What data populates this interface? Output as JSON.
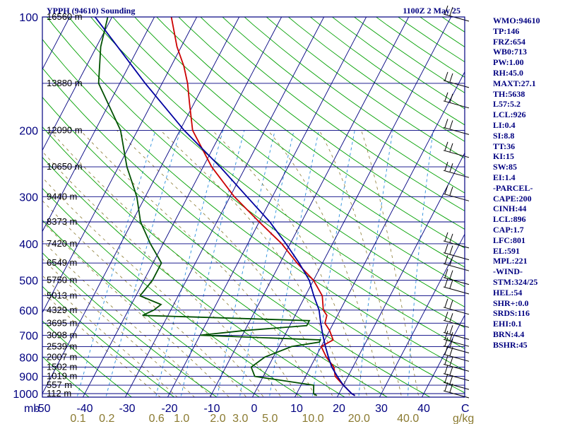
{
  "chart_data": {
    "type": "line",
    "title": "YPPH (94610) Sounding",
    "time": "1100Z  2 May 25",
    "x_unit": "C",
    "mixing_ratio_unit": "g/kg",
    "pressure_axis_label": "mb",
    "xlim": [
      -50,
      50
    ],
    "ylim": [
      1000,
      100
    ],
    "y_scale": "log",
    "pressure_levels": [
      100,
      200,
      300,
      400,
      500,
      600,
      700,
      800,
      900,
      1000
    ],
    "temperature_ticks": [
      -50,
      -40,
      -30,
      -20,
      -10,
      0,
      10,
      20,
      30,
      40
    ],
    "temperature_tick_labels": [
      "-50",
      "-40",
      "-30",
      "-20",
      "-10",
      "0",
      "10",
      "20",
      "30",
      "40"
    ],
    "mixing_ratio_labels": [
      "0.1",
      "0.2",
      "0.6",
      "1.0",
      "2.0",
      "3.0",
      "5.0",
      "10.0",
      "20.0",
      "40.0"
    ],
    "height_labels": [
      {
        "p": 100,
        "label": "16560 m"
      },
      {
        "p": 150,
        "label": "13880 m"
      },
      {
        "p": 200,
        "label": "12090 m"
      },
      {
        "p": 250,
        "label": "10650 m"
      },
      {
        "p": 300,
        "label": "9440 m"
      },
      {
        "p": 350,
        "label": "8373 m"
      },
      {
        "p": 400,
        "label": "7420 m"
      },
      {
        "p": 450,
        "label": "6549 m"
      },
      {
        "p": 500,
        "label": "5750 m"
      },
      {
        "p": 550,
        "label": "5013 m"
      },
      {
        "p": 600,
        "label": "4329 m"
      },
      {
        "p": 650,
        "label": "3695 m"
      },
      {
        "p": 700,
        "label": "3098 m"
      },
      {
        "p": 750,
        "label": "2539 m"
      },
      {
        "p": 800,
        "label": "2007 m"
      },
      {
        "p": 850,
        "label": "1502 m"
      },
      {
        "p": 900,
        "label": "1019 m"
      },
      {
        "p": 950,
        "label": "557 m"
      },
      {
        "p": 1000,
        "label": "112 m"
      }
    ],
    "series": [
      {
        "name": "temperature",
        "color": "#cc0000",
        "points": [
          [
            1012,
            24
          ],
          [
            1000,
            23
          ],
          [
            950,
            20
          ],
          [
            900,
            17
          ],
          [
            850,
            15.5
          ],
          [
            800,
            12.5
          ],
          [
            750,
            10
          ],
          [
            720,
            12
          ],
          [
            700,
            11
          ],
          [
            680,
            10
          ],
          [
            650,
            8
          ],
          [
            620,
            7.5
          ],
          [
            600,
            6
          ],
          [
            550,
            4
          ],
          [
            500,
            0
          ],
          [
            450,
            -6
          ],
          [
            400,
            -12
          ],
          [
            350,
            -20
          ],
          [
            300,
            -29
          ],
          [
            250,
            -38
          ],
          [
            200,
            -47
          ],
          [
            170,
            -51
          ],
          [
            150,
            -54
          ],
          [
            135,
            -57
          ],
          [
            120,
            -61
          ],
          [
            100,
            -66
          ]
        ]
      },
      {
        "name": "dewpoint",
        "color": "#005000",
        "points": [
          [
            1012,
            15
          ],
          [
            1000,
            14
          ],
          [
            950,
            13
          ],
          [
            900,
            -2
          ],
          [
            850,
            -4
          ],
          [
            800,
            -2
          ],
          [
            750,
            3
          ],
          [
            730,
            9
          ],
          [
            720,
            9
          ],
          [
            700,
            -20
          ],
          [
            680,
            -10
          ],
          [
            660,
            4
          ],
          [
            640,
            4
          ],
          [
            620,
            -36
          ],
          [
            600,
            -34
          ],
          [
            580,
            -33
          ],
          [
            550,
            -39
          ],
          [
            500,
            -38
          ],
          [
            450,
            -38
          ],
          [
            400,
            -43
          ],
          [
            350,
            -48
          ],
          [
            300,
            -52
          ],
          [
            250,
            -58
          ],
          [
            200,
            -64
          ],
          [
            150,
            -75
          ],
          [
            120,
            -79
          ],
          [
            100,
            -81
          ]
        ]
      },
      {
        "name": "parcel",
        "color": "#0000a0",
        "points": [
          [
            1012,
            24
          ],
          [
            1000,
            23
          ],
          [
            950,
            20
          ],
          [
            900,
            17.5
          ],
          [
            850,
            15
          ],
          [
            800,
            13
          ],
          [
            750,
            11
          ],
          [
            700,
            9
          ],
          [
            650,
            7
          ],
          [
            600,
            5
          ],
          [
            550,
            2
          ],
          [
            500,
            -1
          ],
          [
            450,
            -5.5
          ],
          [
            400,
            -11
          ],
          [
            350,
            -17.5
          ],
          [
            300,
            -26
          ],
          [
            250,
            -36
          ],
          [
            200,
            -49
          ],
          [
            150,
            -64
          ],
          [
            120,
            -75
          ],
          [
            100,
            -84
          ]
        ]
      }
    ],
    "wind_levels": [
      100,
      150,
      170,
      200,
      230,
      260,
      300,
      400,
      430,
      460,
      500,
      530,
      600,
      650,
      700,
      730,
      760,
      800,
      850,
      900,
      950,
      1000
    ],
    "indices": [
      "WMO:94610",
      "TP:146",
      "FRZ:654",
      "WB0:713",
      "PW:1.00",
      "RH:45.0",
      "MAXT:27.1",
      "TH:5638",
      "L57:5.2",
      "LCL:926",
      "LI:0.4",
      "SI:8.8",
      "TT:36",
      "KI:15",
      "SW:85",
      "EI:1.4",
      "-PARCEL-",
      "CAPE:200",
      "CINH:44",
      "LCL:896",
      "CAP:1.7",
      "LFC:801",
      "EL:591",
      "MPL:221",
      "-WIND-",
      "STM:324/25",
      "HEL:54",
      "SHR+:0.0",
      "SRDS:116",
      "EHI:0.1",
      "BRN:4.4",
      "BSHR:45"
    ],
    "colors": {
      "frame": "#000080",
      "isotherm": "#000080",
      "dry_adiabat": "#00a000",
      "moist_adiabat": "#8a7a30",
      "mixing_ratio": "#2b8fdd",
      "temperature": "#cc0000",
      "dewpoint": "#005000",
      "parcel": "#0000a0",
      "wind": "#000000"
    }
  }
}
